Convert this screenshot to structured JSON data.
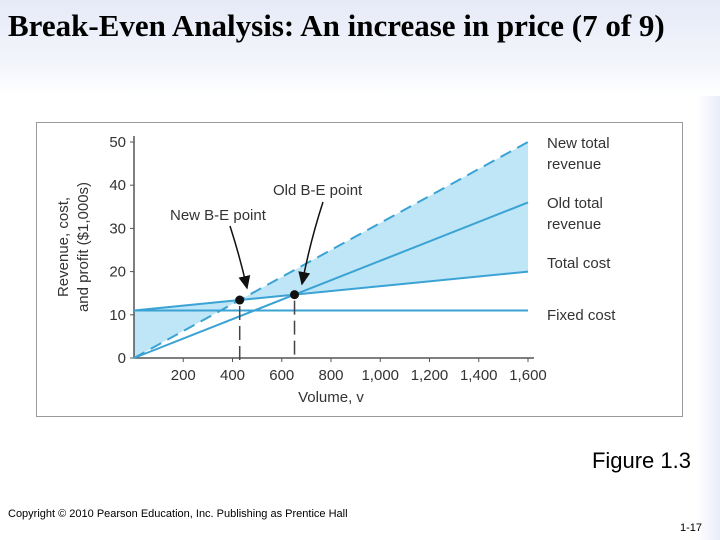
{
  "slide": {
    "title": "Break-Even Analysis: An increase in price (7 of 9)",
    "figure_caption": "Figure 1.3",
    "copyright": "Copyright © 2010 Pearson Education, Inc. Publishing as Prentice Hall",
    "page_number": "1-17"
  },
  "colors": {
    "line": "#3aa3d4",
    "fill": "#bfe6f7",
    "axis": "#555555",
    "text": "#333333"
  },
  "chart_data": {
    "type": "line",
    "xlabel": "Volume, v",
    "ylabel": [
      "Revenue, cost,",
      "and profit ($1,000s)"
    ],
    "xlim": [
      0,
      1600
    ],
    "ylim": [
      0,
      50
    ],
    "x_ticks": [
      200,
      400,
      600,
      800,
      1000,
      1200,
      1400,
      1600
    ],
    "x_tick_labels": [
      "200",
      "400",
      "600",
      "800",
      "1,000",
      "1,200",
      "1,400",
      "1,600"
    ],
    "y_ticks": [
      0,
      10,
      20,
      30,
      40,
      50
    ],
    "y_tick_labels": [
      "0",
      "10",
      "20",
      "30",
      "40",
      "50"
    ],
    "series": [
      {
        "name": "New total revenue",
        "label_lines": [
          "New total",
          "revenue"
        ],
        "style": "dashed",
        "x": [
          0,
          1600
        ],
        "y": [
          0,
          50
        ]
      },
      {
        "name": "Old total revenue",
        "label_lines": [
          "Old total",
          "revenue"
        ],
        "style": "solid",
        "x": [
          0,
          1600
        ],
        "y": [
          0,
          36
        ]
      },
      {
        "name": "Total cost",
        "label_lines": [
          "Total cost"
        ],
        "style": "solid",
        "x": [
          0,
          1600
        ],
        "y": [
          11,
          20
        ]
      },
      {
        "name": "Fixed cost",
        "label_lines": [
          "Fixed cost"
        ],
        "style": "solid",
        "x": [
          0,
          1600
        ],
        "y": [
          11,
          11
        ]
      }
    ],
    "annotations": [
      {
        "text": "Old B-E point",
        "x": 667,
        "y": 14.75
      },
      {
        "text": "New B-E point",
        "x": 460,
        "y": 13.6
      }
    ]
  }
}
